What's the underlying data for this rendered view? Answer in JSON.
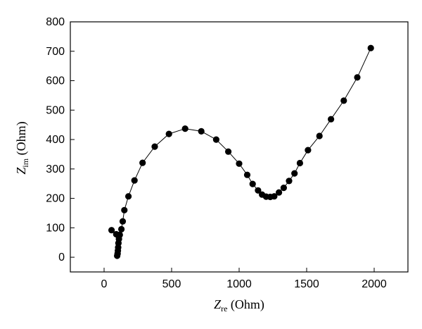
{
  "chart_data": {
    "type": "scatter",
    "xlabel": {
      "main": "Z",
      "sub": "re",
      "unit": " (Ohm)"
    },
    "ylabel": {
      "main": "Z",
      "sub": "im",
      "unit": " (Ohm)"
    },
    "xlim": [
      -250,
      2250
    ],
    "ylim": [
      -50,
      800
    ],
    "xticks": [
      0,
      500,
      1000,
      1500,
      2000
    ],
    "yticks": [
      0,
      100,
      200,
      300,
      400,
      500,
      600,
      700,
      800
    ],
    "grid": false,
    "legend": "none",
    "series": [
      {
        "marker": "filled-circle",
        "line": true,
        "color": "#000000",
        "points": [
          [
            55,
            92
          ],
          [
            90,
            78
          ],
          [
            97,
            5
          ],
          [
            100,
            12
          ],
          [
            102,
            22
          ],
          [
            104,
            33
          ],
          [
            106,
            48
          ],
          [
            110,
            62
          ],
          [
            116,
            76
          ],
          [
            128,
            95
          ],
          [
            138,
            122
          ],
          [
            150,
            160
          ],
          [
            180,
            207
          ],
          [
            225,
            261
          ],
          [
            285,
            321
          ],
          [
            375,
            376
          ],
          [
            480,
            419
          ],
          [
            600,
            437
          ],
          [
            720,
            428
          ],
          [
            830,
            400
          ],
          [
            920,
            359
          ],
          [
            1000,
            318
          ],
          [
            1060,
            280
          ],
          [
            1100,
            249
          ],
          [
            1140,
            227
          ],
          [
            1170,
            213
          ],
          [
            1200,
            206
          ],
          [
            1230,
            205
          ],
          [
            1260,
            207
          ],
          [
            1295,
            220
          ],
          [
            1330,
            236
          ],
          [
            1370,
            259
          ],
          [
            1410,
            285
          ],
          [
            1450,
            320
          ],
          [
            1510,
            364
          ],
          [
            1595,
            412
          ],
          [
            1680,
            469
          ],
          [
            1775,
            532
          ],
          [
            1875,
            611
          ],
          [
            1975,
            711
          ]
        ]
      }
    ]
  }
}
